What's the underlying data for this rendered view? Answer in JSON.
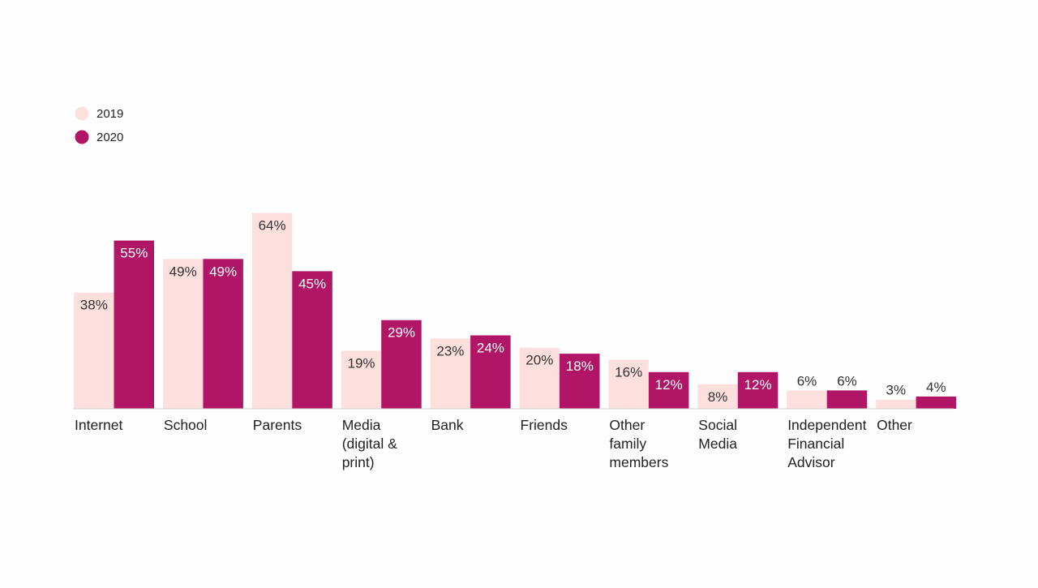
{
  "chart_data": {
    "type": "bar",
    "title": "",
    "xlabel": "",
    "ylabel": "",
    "ylim": [
      0,
      70
    ],
    "grid": false,
    "legend_position": "top-left",
    "categories": [
      [
        "Internet"
      ],
      [
        "School"
      ],
      [
        "Parents"
      ],
      [
        "Media",
        "(digital &",
        "print)"
      ],
      [
        "Bank"
      ],
      [
        "Friends"
      ],
      [
        "Other",
        "family",
        "members"
      ],
      [
        "Social",
        "Media"
      ],
      [
        "Independent",
        "Financial",
        "Advisor"
      ],
      [
        "Other"
      ]
    ],
    "series": [
      {
        "name": "2019",
        "color": "#fde0de",
        "label_color": "#333333",
        "values": [
          38,
          49,
          64,
          19,
          23,
          20,
          16,
          8,
          6,
          3
        ],
        "labels": [
          "38%",
          "49%",
          "64%",
          "19%",
          "23%",
          "20%",
          "16%",
          "8%",
          "6%",
          "3%"
        ]
      },
      {
        "name": "2020",
        "color": "#b01665",
        "label_color": "#ffffff",
        "values": [
          55,
          49,
          45,
          29,
          24,
          18,
          12,
          12,
          6,
          4
        ],
        "labels": [
          "55%",
          "49%",
          "45%",
          "29%",
          "24%",
          "18%",
          "12%",
          "12%",
          "6%",
          "4%"
        ]
      }
    ]
  }
}
